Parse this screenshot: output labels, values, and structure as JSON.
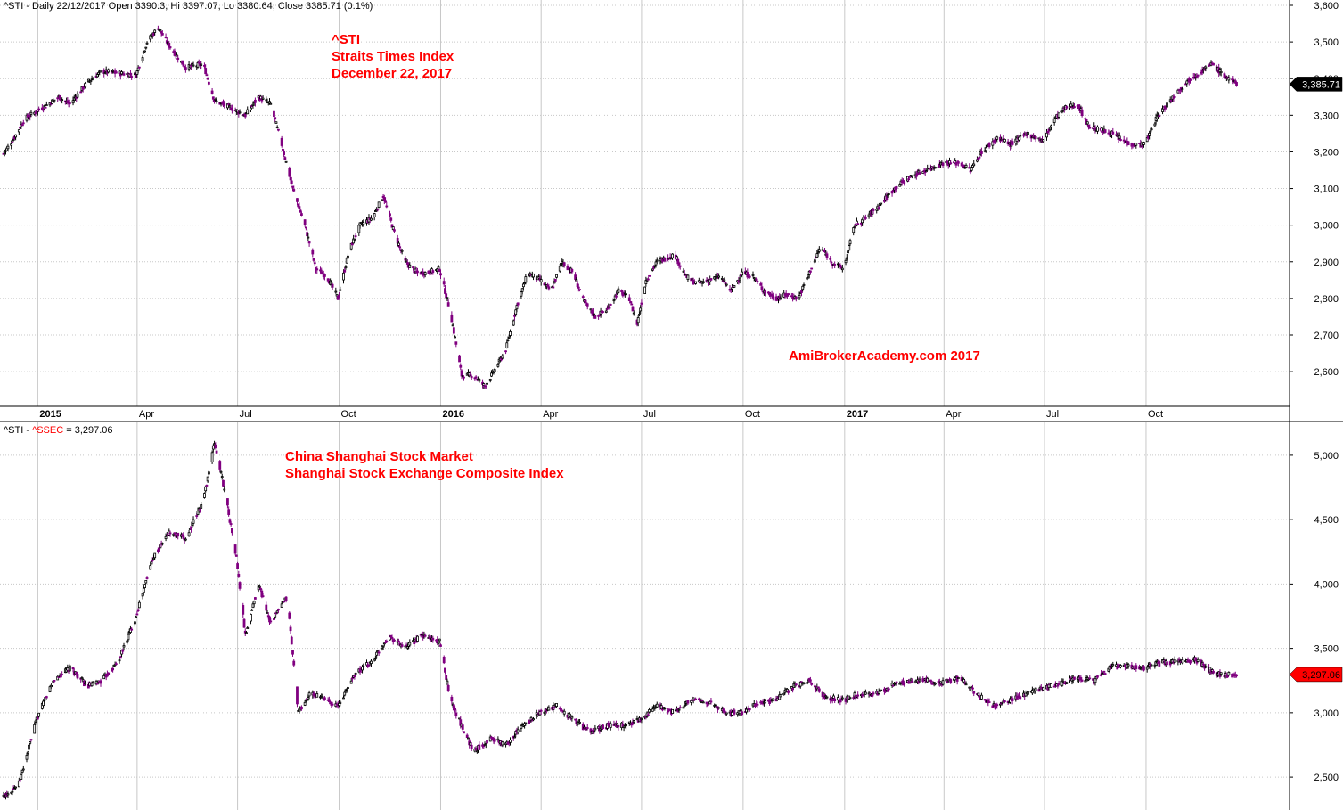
{
  "header": {
    "top_left": "^STI - Daily 22/12/2017 Open 3390.3, Hi 3397.07, Lo 3380.64, Close 3385.71 (0.1%)",
    "bottom_left_prefix": "^STI - ",
    "bottom_left_symbol": "^SSEC",
    "bottom_left_suffix": " = 3,297.06"
  },
  "annotations": {
    "sti_line1": "^STI",
    "sti_line2": "Straits Times Index",
    "sti_line3": "December 22, 2017",
    "ssec_line1": "China Shanghai Stock Market",
    "ssec_line2": "Shanghai Stock Exchange Composite Index",
    "watermark": "AmiBrokerAcademy.com  2017"
  },
  "colors": {
    "up": "#000000",
    "down": "#800080",
    "annotation": "#ff0000",
    "grid": "#c8c8c8"
  },
  "chart_data": [
    {
      "type": "candlestick",
      "name": "^STI",
      "ylim": [
        2520,
        3600
      ],
      "y_ticks": [
        2600,
        2700,
        2800,
        2900,
        3000,
        3100,
        3200,
        3300,
        3400,
        3500,
        3600
      ],
      "y_tick_labels": [
        "2,600",
        "2,700",
        "2,800",
        "2,900",
        "3,000",
        "3,100",
        "3,200",
        "3,300",
        "3,400",
        "3,500",
        "3,600"
      ],
      "x_range": [
        "2014-12-01",
        "2017-12-24"
      ],
      "x_ticks": [
        "2015-01-01",
        "2015-04-01",
        "2015-07-01",
        "2015-10-01",
        "2016-01-01",
        "2016-04-01",
        "2016-07-01",
        "2016-10-01",
        "2017-01-01",
        "2017-04-01",
        "2017-07-01",
        "2017-10-01"
      ],
      "x_tick_labels": [
        "2015",
        "Apr",
        "Jul",
        "Oct",
        "2016",
        "Apr",
        "Jul",
        "Oct",
        "2017",
        "Apr",
        "Jul",
        "Oct"
      ],
      "x_tick_bold": [
        true,
        false,
        false,
        false,
        true,
        false,
        false,
        false,
        true,
        false,
        false,
        false
      ],
      "anchors": [
        [
          "2014-12-01",
          3195
        ],
        [
          "2014-12-10",
          3235
        ],
        [
          "2014-12-20",
          3290
        ],
        [
          "2015-01-05",
          3320
        ],
        [
          "2015-01-20",
          3350
        ],
        [
          "2015-01-30",
          3330
        ],
        [
          "2015-02-15",
          3390
        ],
        [
          "2015-02-28",
          3420
        ],
        [
          "2015-03-15",
          3415
        ],
        [
          "2015-03-31",
          3410
        ],
        [
          "2015-04-10",
          3500
        ],
        [
          "2015-04-20",
          3540
        ],
        [
          "2015-04-30",
          3490
        ],
        [
          "2015-05-15",
          3430
        ],
        [
          "2015-05-31",
          3440
        ],
        [
          "2015-06-10",
          3340
        ],
        [
          "2015-06-25",
          3320
        ],
        [
          "2015-07-08",
          3300
        ],
        [
          "2015-07-20",
          3350
        ],
        [
          "2015-07-31",
          3330
        ],
        [
          "2015-08-10",
          3220
        ],
        [
          "2015-08-20",
          3100
        ],
        [
          "2015-08-31",
          3000
        ],
        [
          "2015-09-10",
          2880
        ],
        [
          "2015-09-20",
          2860
        ],
        [
          "2015-09-30",
          2800
        ],
        [
          "2015-10-10",
          2930
        ],
        [
          "2015-10-20",
          3000
        ],
        [
          "2015-10-31",
          3020
        ],
        [
          "2015-11-10",
          3080
        ],
        [
          "2015-11-20",
          2980
        ],
        [
          "2015-11-30",
          2900
        ],
        [
          "2015-12-10",
          2870
        ],
        [
          "2015-12-20",
          2870
        ],
        [
          "2015-12-31",
          2880
        ],
        [
          "2016-01-10",
          2760
        ],
        [
          "2016-01-20",
          2590
        ],
        [
          "2016-01-31",
          2590
        ],
        [
          "2016-02-10",
          2560
        ],
        [
          "2016-02-20",
          2610
        ],
        [
          "2016-02-29",
          2660
        ],
        [
          "2016-03-10",
          2780
        ],
        [
          "2016-03-20",
          2870
        ],
        [
          "2016-03-31",
          2850
        ],
        [
          "2016-04-10",
          2820
        ],
        [
          "2016-04-20",
          2900
        ],
        [
          "2016-04-30",
          2870
        ],
        [
          "2016-05-10",
          2790
        ],
        [
          "2016-05-20",
          2750
        ],
        [
          "2016-05-31",
          2770
        ],
        [
          "2016-06-10",
          2820
        ],
        [
          "2016-06-20",
          2800
        ],
        [
          "2016-06-27",
          2730
        ],
        [
          "2016-07-05",
          2850
        ],
        [
          "2016-07-15",
          2900
        ],
        [
          "2016-07-31",
          2920
        ],
        [
          "2016-08-10",
          2860
        ],
        [
          "2016-08-20",
          2840
        ],
        [
          "2016-08-31",
          2850
        ],
        [
          "2016-09-10",
          2860
        ],
        [
          "2016-09-20",
          2820
        ],
        [
          "2016-09-30",
          2870
        ],
        [
          "2016-10-10",
          2860
        ],
        [
          "2016-10-20",
          2820
        ],
        [
          "2016-10-31",
          2800
        ],
        [
          "2016-11-10",
          2810
        ],
        [
          "2016-11-20",
          2800
        ],
        [
          "2016-11-30",
          2870
        ],
        [
          "2016-12-10",
          2940
        ],
        [
          "2016-12-20",
          2900
        ],
        [
          "2016-12-31",
          2880
        ],
        [
          "2017-01-10",
          3000
        ],
        [
          "2017-01-20",
          3020
        ],
        [
          "2017-01-31",
          3050
        ],
        [
          "2017-02-15",
          3100
        ],
        [
          "2017-02-28",
          3130
        ],
        [
          "2017-03-15",
          3150
        ],
        [
          "2017-03-31",
          3170
        ],
        [
          "2017-04-15",
          3170
        ],
        [
          "2017-04-25",
          3150
        ],
        [
          "2017-05-05",
          3200
        ],
        [
          "2017-05-20",
          3240
        ],
        [
          "2017-05-31",
          3220
        ],
        [
          "2017-06-15",
          3250
        ],
        [
          "2017-06-30",
          3230
        ],
        [
          "2017-07-10",
          3290
        ],
        [
          "2017-07-20",
          3320
        ],
        [
          "2017-07-31",
          3330
        ],
        [
          "2017-08-10",
          3270
        ],
        [
          "2017-08-20",
          3260
        ],
        [
          "2017-08-31",
          3250
        ],
        [
          "2017-09-10",
          3230
        ],
        [
          "2017-09-20",
          3220
        ],
        [
          "2017-09-30",
          3220
        ],
        [
          "2017-10-10",
          3290
        ],
        [
          "2017-10-20",
          3330
        ],
        [
          "2017-10-31",
          3370
        ],
        [
          "2017-11-10",
          3400
        ],
        [
          "2017-11-20",
          3420
        ],
        [
          "2017-11-30",
          3440
        ],
        [
          "2017-12-10",
          3410
        ],
        [
          "2017-12-22",
          3385
        ]
      ],
      "last_value_label": "3,385.71"
    },
    {
      "type": "candlestick",
      "name": "^SSEC",
      "ylim": [
        2300,
        5200
      ],
      "y_ticks": [
        2500,
        3000,
        3500,
        4000,
        4500,
        5000
      ],
      "y_tick_labels": [
        "2,500",
        "3,000",
        "3,500",
        "4,000",
        "4,500",
        "5,000"
      ],
      "x_range": [
        "2014-12-01",
        "2017-12-24"
      ],
      "anchors": [
        [
          "2014-12-01",
          2350
        ],
        [
          "2014-12-15",
          2450
        ],
        [
          "2014-12-31",
          2950
        ],
        [
          "2015-01-15",
          3250
        ],
        [
          "2015-01-31",
          3350
        ],
        [
          "2015-02-15",
          3200
        ],
        [
          "2015-02-28",
          3250
        ],
        [
          "2015-03-15",
          3400
        ],
        [
          "2015-03-31",
          3750
        ],
        [
          "2015-04-15",
          4200
        ],
        [
          "2015-04-30",
          4400
        ],
        [
          "2015-05-15",
          4350
        ],
        [
          "2015-05-31",
          4650
        ],
        [
          "2015-06-10",
          5100
        ],
        [
          "2015-06-20",
          4700
        ],
        [
          "2015-06-30",
          4200
        ],
        [
          "2015-07-08",
          3600
        ],
        [
          "2015-07-20",
          4000
        ],
        [
          "2015-07-31",
          3700
        ],
        [
          "2015-08-15",
          3900
        ],
        [
          "2015-08-25",
          3000
        ],
        [
          "2015-09-05",
          3150
        ],
        [
          "2015-09-20",
          3100
        ],
        [
          "2015-09-30",
          3050
        ],
        [
          "2015-10-15",
          3300
        ],
        [
          "2015-10-31",
          3400
        ],
        [
          "2015-11-15",
          3600
        ],
        [
          "2015-11-30",
          3500
        ],
        [
          "2015-12-15",
          3600
        ],
        [
          "2015-12-31",
          3550
        ],
        [
          "2016-01-10",
          3100
        ],
        [
          "2016-01-20",
          2900
        ],
        [
          "2016-01-31",
          2700
        ],
        [
          "2016-02-15",
          2800
        ],
        [
          "2016-02-29",
          2750
        ],
        [
          "2016-03-15",
          2900
        ],
        [
          "2016-03-31",
          3000
        ],
        [
          "2016-04-15",
          3050
        ],
        [
          "2016-04-30",
          2950
        ],
        [
          "2016-05-15",
          2850
        ],
        [
          "2016-05-31",
          2900
        ],
        [
          "2016-06-15",
          2900
        ],
        [
          "2016-06-30",
          2950
        ],
        [
          "2016-07-15",
          3050
        ],
        [
          "2016-07-31",
          3000
        ],
        [
          "2016-08-15",
          3100
        ],
        [
          "2016-08-31",
          3080
        ],
        [
          "2016-09-15",
          3000
        ],
        [
          "2016-09-30",
          3000
        ],
        [
          "2016-10-15",
          3080
        ],
        [
          "2016-10-31",
          3100
        ],
        [
          "2016-11-15",
          3200
        ],
        [
          "2016-11-30",
          3250
        ],
        [
          "2016-12-15",
          3120
        ],
        [
          "2016-12-31",
          3100
        ],
        [
          "2017-01-15",
          3150
        ],
        [
          "2017-01-31",
          3150
        ],
        [
          "2017-02-15",
          3220
        ],
        [
          "2017-02-28",
          3240
        ],
        [
          "2017-03-15",
          3250
        ],
        [
          "2017-03-31",
          3230
        ],
        [
          "2017-04-15",
          3270
        ],
        [
          "2017-04-30",
          3150
        ],
        [
          "2017-05-15",
          3050
        ],
        [
          "2017-05-31",
          3100
        ],
        [
          "2017-06-15",
          3150
        ],
        [
          "2017-06-30",
          3190
        ],
        [
          "2017-07-15",
          3220
        ],
        [
          "2017-07-31",
          3270
        ],
        [
          "2017-08-15",
          3250
        ],
        [
          "2017-08-31",
          3360
        ],
        [
          "2017-09-15",
          3360
        ],
        [
          "2017-09-30",
          3350
        ],
        [
          "2017-10-15",
          3390
        ],
        [
          "2017-10-31",
          3400
        ],
        [
          "2017-11-15",
          3410
        ],
        [
          "2017-11-30",
          3320
        ],
        [
          "2017-12-10",
          3290
        ],
        [
          "2017-12-22",
          3297
        ]
      ],
      "last_value_label": "3,297.06"
    }
  ]
}
